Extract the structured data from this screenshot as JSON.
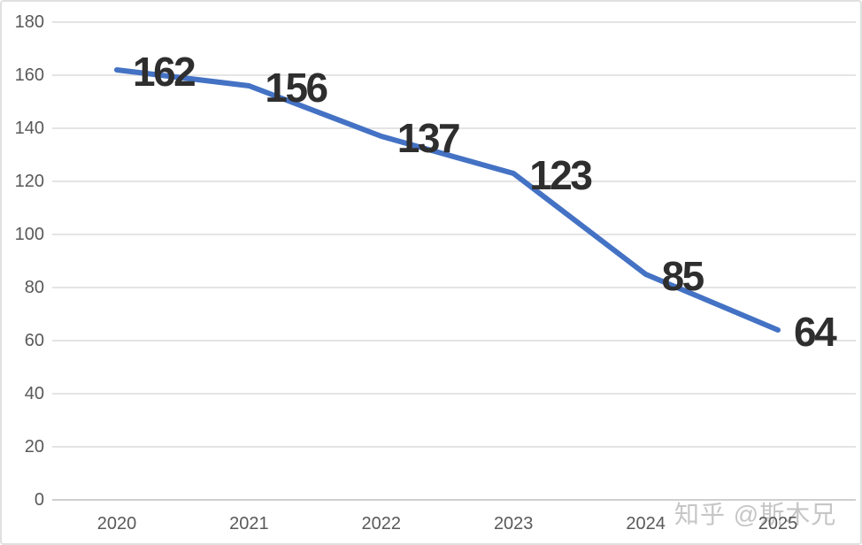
{
  "chart_data": {
    "type": "line",
    "categories": [
      "2020",
      "2021",
      "2022",
      "2023",
      "2024",
      "2025"
    ],
    "values": [
      162,
      156,
      137,
      123,
      85,
      64
    ],
    "data_labels": [
      "162",
      "156",
      "137",
      "123",
      "85",
      "64"
    ],
    "title": "",
    "xlabel": "",
    "ylabel": "",
    "ylim": [
      0,
      180
    ],
    "ytick_step": 20,
    "ytick_labels": [
      "0",
      "20",
      "40",
      "60",
      "80",
      "100",
      "120",
      "140",
      "160",
      "180"
    ],
    "grid": true,
    "legend": false,
    "colors": {
      "line": "#4472c4",
      "data_label": "#2e2e2e",
      "axis_label": "#595959",
      "gridline": "#e4e4e4",
      "axis_line": "#cfcfcf",
      "background": "#ffffff",
      "border": "#e0e0e0"
    }
  },
  "watermark": {
    "text": "知乎 @斯木兄",
    "color": "#c6c6c6"
  }
}
